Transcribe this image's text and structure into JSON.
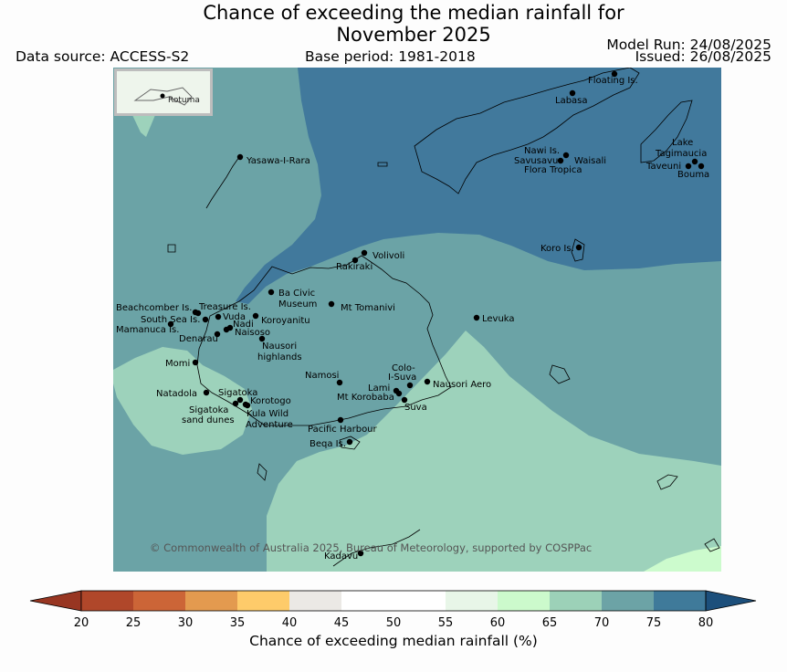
{
  "header": {
    "title_line1": "Chance of exceeding the median rainfall for",
    "title_line2": "November 2025",
    "data_source": "Data source: ACCESS-S2",
    "base_period": "Base period: 1981-2018",
    "model_run": "Model Run: 24/08/2025",
    "issued": "Issued: 26/08/2025"
  },
  "inset": {
    "label": "Rotuma"
  },
  "places": [
    "Floating Is.",
    "Labasa",
    "Nawi Is.",
    "Savusavu",
    "Waisali",
    "Flora Tropica",
    "Lake",
    "Tagimaucia",
    "Taveuni",
    "Bouma",
    "Yasawa-I-Rara",
    "Koro Is.",
    "Volivoli",
    "Rakiraki",
    "Ba Civic",
    "Museum",
    "Mt Tomanivi",
    "Levuka",
    "Beachcomber Is.",
    "Treasure Is.",
    "South Sea Is.",
    "Vuda",
    "Koroyanitu",
    "Nadi",
    "Mamanuca Is.",
    "Naisoso",
    "Denarau",
    "Nausori",
    "highlands",
    "Momi",
    "Namosi",
    "Colo-",
    "I-Suva",
    "Nausori Aero",
    "Lami",
    "Mt Korobaba",
    "Suva",
    "Natadola",
    "Sigatoka",
    "Korotogo",
    "Sigatoka",
    "sand dunes",
    "Kula Wild",
    "Adventure",
    "Pacific Harbour",
    "Beqa Is.",
    "Kadavu"
  ],
  "copyright": "© Commonwealth of Australia 2025, Bureau of Meteorology, supported by COSPPac",
  "colorbar": {
    "label": "Chance of exceeding median rainfall (%)",
    "ticks": [
      "20",
      "25",
      "30",
      "35",
      "40",
      "45",
      "50",
      "55",
      "60",
      "65",
      "70",
      "75",
      "80"
    ],
    "colors": [
      "#b0472a",
      "#cc6537",
      "#e39a4f",
      "#fecb6a",
      "#ebe9e5",
      "#ffffff",
      "#ffffff",
      "#e8f6e8",
      "#ccfacc",
      "#9cd1b8",
      "#6ca3a6",
      "#3f7a9a"
    ],
    "under_color": "#983622",
    "over_color": "#1c4f7b"
  },
  "map_colors": {
    "band_65_70": "#9dd2bb",
    "band_70_75": "#6ba3a6",
    "band_75_80": "#41799c",
    "band_60_65": "#ccfbcd"
  }
}
